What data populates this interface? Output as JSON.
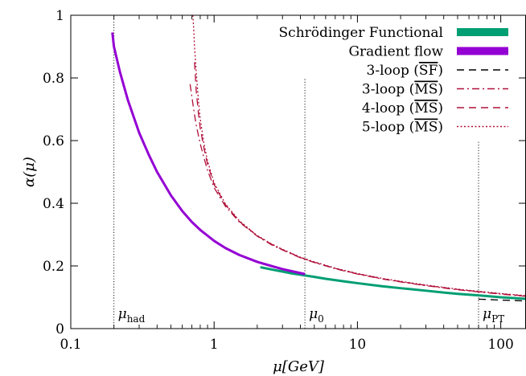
{
  "chart_data": {
    "type": "line",
    "title": "",
    "xlabel": "μ[GeV]",
    "ylabel": "α(μ)",
    "xscale": "log",
    "xlim": [
      0.1,
      150
    ],
    "ylim": [
      0,
      1
    ],
    "grid": false,
    "legend_position": "top-right",
    "x_ticks": [
      {
        "value": 0.1,
        "label": "0.1"
      },
      {
        "value": 1,
        "label": "1"
      },
      {
        "value": 10,
        "label": "10"
      },
      {
        "value": 100,
        "label": "100"
      }
    ],
    "y_ticks": [
      {
        "value": 0,
        "label": "0"
      },
      {
        "value": 0.2,
        "label": "0.2"
      },
      {
        "value": 0.4,
        "label": "0.4"
      },
      {
        "value": 0.6,
        "label": "0.6"
      },
      {
        "value": 0.8,
        "label": "0.8"
      },
      {
        "value": 1,
        "label": "1"
      }
    ],
    "vertical_lines": [
      {
        "x": 0.2,
        "ymax": 1.0,
        "label": "μhad",
        "label_main": "μ",
        "label_sub": "had"
      },
      {
        "x": 4.3,
        "ymax": 0.8,
        "label": "μ0",
        "label_main": "μ",
        "label_sub": "0"
      },
      {
        "x": 70,
        "ymax": 0.6,
        "label": "μPT",
        "label_main": "μ",
        "label_sub": "PT"
      }
    ],
    "series": [
      {
        "name": "Schrödinger Functional",
        "color": "#009e73",
        "style": "band",
        "x": [
          2.1,
          2.5,
          3,
          3.5,
          4,
          5,
          6,
          8,
          10,
          15,
          20,
          30,
          40,
          50,
          70,
          100,
          150
        ],
        "y": [
          0.196,
          0.189,
          0.182,
          0.176,
          0.172,
          0.165,
          0.159,
          0.151,
          0.145,
          0.135,
          0.129,
          0.121,
          0.115,
          0.111,
          0.106,
          0.1,
          0.095
        ]
      },
      {
        "name": "Gradient flow",
        "color": "#9400d3",
        "style": "band",
        "x": [
          0.195,
          0.2,
          0.22,
          0.25,
          0.3,
          0.35,
          0.4,
          0.5,
          0.6,
          0.7,
          0.8,
          1.0,
          1.2,
          1.5,
          2.0,
          2.5,
          3.0,
          3.5,
          4.3
        ],
        "y": [
          0.945,
          0.9,
          0.82,
          0.73,
          0.625,
          0.555,
          0.5,
          0.425,
          0.375,
          0.34,
          0.315,
          0.28,
          0.257,
          0.235,
          0.213,
          0.2,
          0.19,
          0.183,
          0.174
        ]
      },
      {
        "name": "3-loop (SF)",
        "color": "#000000",
        "style": "dashed",
        "x": [
          70,
          80,
          100,
          120,
          150
        ],
        "y": [
          0.094,
          0.093,
          0.091,
          0.09,
          0.088
        ]
      },
      {
        "name": "3-loop (MS)",
        "color": "#b0103a",
        "style": "dash-dot",
        "x": [
          0.68,
          0.7,
          0.72,
          0.75,
          0.8,
          0.85,
          0.9,
          1.0,
          1.2,
          1.5,
          2.0,
          2.5,
          3.0,
          4.0,
          5.0,
          7.0,
          10,
          15,
          20,
          30,
          50,
          70,
          100,
          150
        ],
        "y": [
          0.78,
          0.74,
          0.7,
          0.65,
          0.59,
          0.545,
          0.505,
          0.45,
          0.39,
          0.34,
          0.295,
          0.268,
          0.251,
          0.226,
          0.211,
          0.191,
          0.174,
          0.158,
          0.149,
          0.137,
          0.124,
          0.117,
          0.11,
          0.103
        ]
      },
      {
        "name": "4-loop (MS)",
        "color": "#b0103a",
        "style": "dashed",
        "x": [
          0.73,
          0.75,
          0.78,
          0.8,
          0.85,
          0.9,
          1.0,
          1.2,
          1.5,
          2.0,
          2.5,
          3.0,
          4.0,
          5.0,
          7.0,
          10,
          15,
          20,
          30,
          50,
          70,
          100,
          150
        ],
        "y": [
          0.85,
          0.76,
          0.68,
          0.64,
          0.575,
          0.525,
          0.46,
          0.395,
          0.342,
          0.296,
          0.27,
          0.252,
          0.227,
          0.212,
          0.192,
          0.175,
          0.159,
          0.15,
          0.138,
          0.125,
          0.118,
          0.111,
          0.104
        ]
      },
      {
        "name": "5-loop (MS)",
        "color": "#b0103a",
        "style": "dotted",
        "x": [
          0.71,
          0.72,
          0.73,
          0.75,
          0.78,
          0.8,
          0.85,
          0.9,
          1.0,
          1.2,
          1.5,
          2.0,
          2.5,
          3.0,
          4.0,
          5.0,
          7.0,
          10,
          15,
          20,
          30,
          50,
          70,
          100,
          150
        ],
        "y": [
          1.0,
          0.96,
          0.9,
          0.82,
          0.72,
          0.67,
          0.59,
          0.535,
          0.465,
          0.398,
          0.344,
          0.297,
          0.271,
          0.253,
          0.228,
          0.213,
          0.193,
          0.176,
          0.16,
          0.151,
          0.139,
          0.126,
          0.119,
          0.112,
          0.105
        ]
      }
    ],
    "legend": [
      {
        "label": "Schrödinger Functional",
        "main": "Schrödinger Functional",
        "paren": "",
        "series_index": 0
      },
      {
        "label": "Gradient flow",
        "main": "Gradient flow",
        "paren": "",
        "series_index": 1
      },
      {
        "label": "3-loop (SF)",
        "main": "3-loop (",
        "paren": "SF",
        "series_index": 2
      },
      {
        "label": "3-loop (MS)",
        "main": "3-loop (",
        "paren": "MS",
        "series_index": 3
      },
      {
        "label": "4-loop (MS)",
        "main": "4-loop (",
        "paren": "MS",
        "series_index": 4
      },
      {
        "label": "5-loop (MS)",
        "main": "5-loop (",
        "paren": "MS",
        "series_index": 5
      }
    ]
  }
}
